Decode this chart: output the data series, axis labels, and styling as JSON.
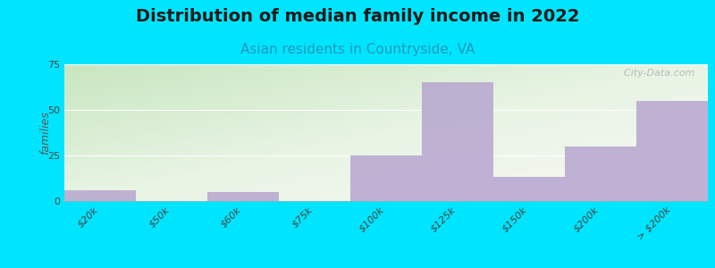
{
  "title": "Distribution of median family income in 2022",
  "subtitle": "Asian residents in Countryside, VA",
  "ylabel": "families",
  "categories": [
    "$20k",
    "$50k",
    "$60k",
    "$75k",
    "$100k",
    "$125k",
    "$150k",
    "$200k",
    "> $200k"
  ],
  "values": [
    6,
    0,
    5,
    0,
    25,
    65,
    13,
    30,
    55
  ],
  "bar_color": "#b8a8d0",
  "background_color": "#00e5ff",
  "grad_bottom_left": "#c8e6c0",
  "grad_top_right": "#f8f8f4",
  "ylim": [
    0,
    75
  ],
  "yticks": [
    0,
    25,
    50,
    75
  ],
  "title_fontsize": 14,
  "subtitle_fontsize": 11,
  "ylabel_fontsize": 9,
  "tick_fontsize": 8,
  "watermark": "  City-Data.com"
}
